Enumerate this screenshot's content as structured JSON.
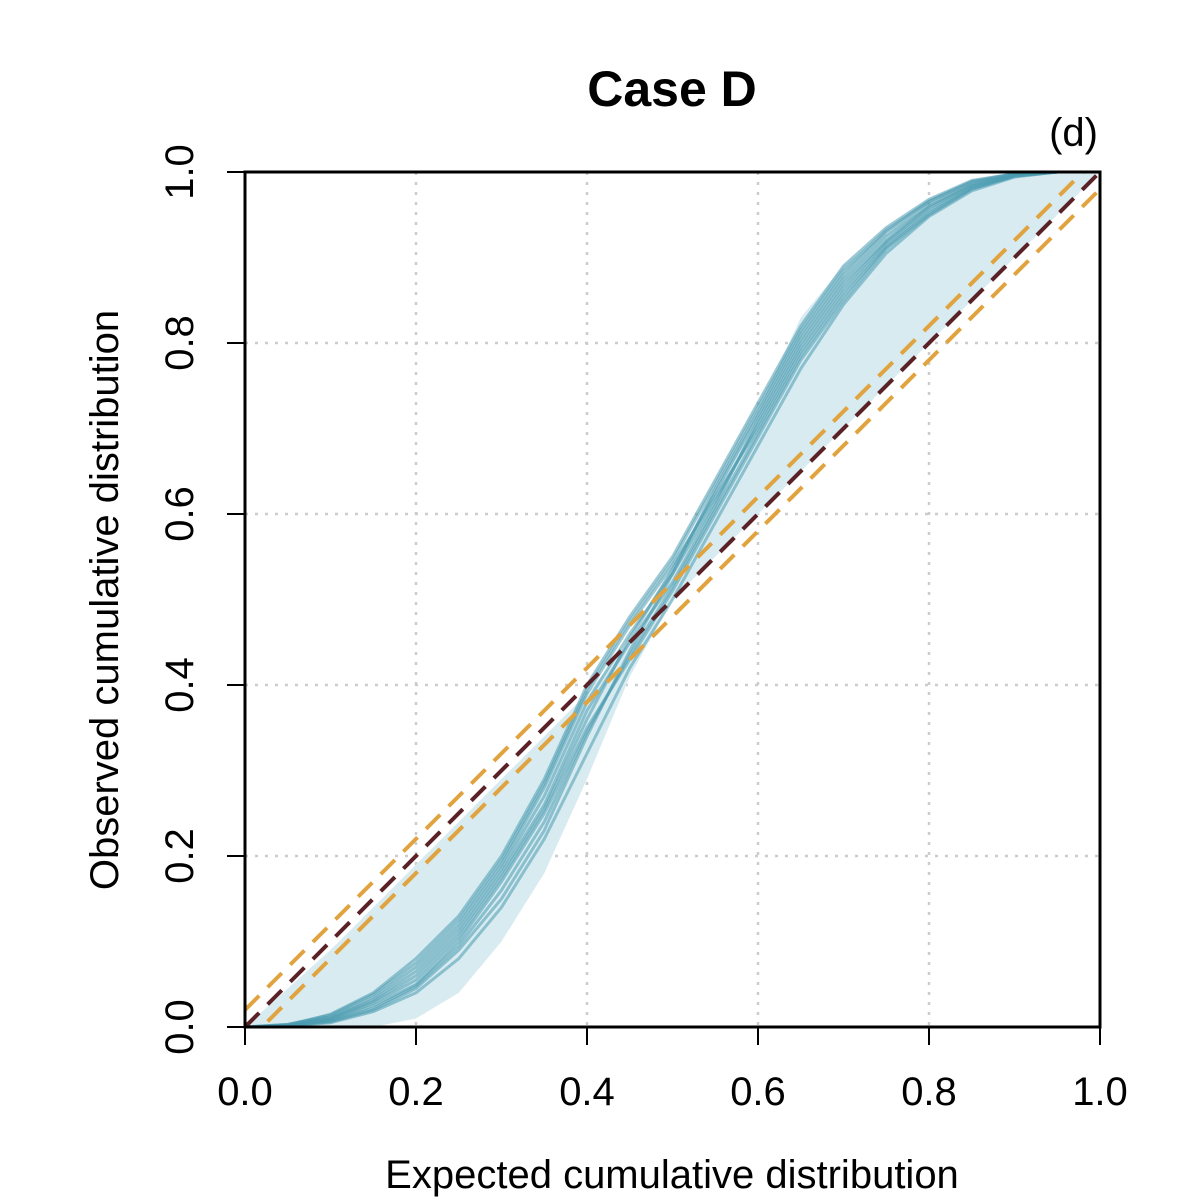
{
  "chart_data": {
    "type": "line",
    "title": "Case D",
    "panel_label": "(d)",
    "xlabel": "Expected cumulative distribution",
    "ylabel": "Observed cumulative distribution",
    "xlim": [
      0,
      1
    ],
    "ylim": [
      0,
      1
    ],
    "xticks": [
      "0.0",
      "0.2",
      "0.4",
      "0.6",
      "0.8",
      "1.0"
    ],
    "yticks": [
      "0.0",
      "0.2",
      "0.4",
      "0.6",
      "0.8",
      "1.0"
    ],
    "grid": true,
    "colors": {
      "replicate": "#4a9ab0",
      "envelope": "#d8ebf0",
      "reference": "#5a2226",
      "bounds": "#e0a33e",
      "grid": "#cccccc"
    },
    "reference_line": {
      "x": [
        0,
        1
      ],
      "y": [
        0,
        1
      ]
    },
    "bound_lines": [
      {
        "x": [
          0,
          1
        ],
        "y": [
          0.02,
          1.02
        ]
      },
      {
        "x": [
          0,
          1
        ],
        "y": [
          -0.02,
          0.98
        ]
      }
    ],
    "x": [
      0,
      0.05,
      0.1,
      0.15,
      0.2,
      0.25,
      0.3,
      0.35,
      0.4,
      0.45,
      0.5,
      0.55,
      0.6,
      0.65,
      0.7,
      0.75,
      0.8,
      0.85,
      0.9,
      0.95,
      1.0
    ],
    "envelope": {
      "upper": [
        0,
        0.045,
        0.09,
        0.14,
        0.19,
        0.24,
        0.29,
        0.34,
        0.39,
        0.45,
        0.54,
        0.63,
        0.72,
        0.83,
        0.89,
        0.93,
        0.96,
        0.985,
        0.997,
        1.0,
        1.0
      ],
      "lower": [
        0,
        0.0,
        0.0,
        0.0,
        0.01,
        0.04,
        0.1,
        0.18,
        0.29,
        0.41,
        0.5,
        0.55,
        0.6,
        0.65,
        0.7,
        0.75,
        0.8,
        0.85,
        0.9,
        0.95,
        1.0
      ]
    },
    "series": [
      {
        "values": [
          0,
          0.002,
          0.01,
          0.03,
          0.06,
          0.11,
          0.18,
          0.26,
          0.37,
          0.45,
          0.52,
          0.61,
          0.71,
          0.8,
          0.87,
          0.92,
          0.96,
          0.985,
          0.997,
          1.0,
          1.0
        ]
      },
      {
        "values": [
          0,
          0.001,
          0.006,
          0.02,
          0.045,
          0.09,
          0.15,
          0.23,
          0.34,
          0.44,
          0.53,
          0.63,
          0.72,
          0.81,
          0.88,
          0.93,
          0.965,
          0.988,
          0.998,
          1.0,
          1.0
        ]
      },
      {
        "values": [
          0,
          0.003,
          0.012,
          0.035,
          0.07,
          0.12,
          0.19,
          0.28,
          0.39,
          0.47,
          0.54,
          0.62,
          0.7,
          0.79,
          0.86,
          0.915,
          0.955,
          0.982,
          0.996,
          1.0,
          1.0
        ]
      },
      {
        "values": [
          0,
          0.001,
          0.008,
          0.025,
          0.05,
          0.1,
          0.17,
          0.25,
          0.35,
          0.43,
          0.51,
          0.6,
          0.69,
          0.78,
          0.85,
          0.91,
          0.95,
          0.98,
          0.995,
          1.0,
          1.0
        ]
      },
      {
        "values": [
          0,
          0.002,
          0.015,
          0.04,
          0.08,
          0.13,
          0.2,
          0.29,
          0.4,
          0.48,
          0.55,
          0.64,
          0.73,
          0.82,
          0.89,
          0.935,
          0.968,
          0.99,
          0.998,
          1.0,
          1.0
        ]
      },
      {
        "values": [
          0,
          0.001,
          0.005,
          0.018,
          0.04,
          0.08,
          0.14,
          0.22,
          0.32,
          0.42,
          0.5,
          0.59,
          0.68,
          0.77,
          0.845,
          0.905,
          0.948,
          0.978,
          0.994,
          1.0,
          1.0
        ]
      },
      {
        "values": [
          0,
          0.002,
          0.011,
          0.032,
          0.065,
          0.115,
          0.185,
          0.27,
          0.38,
          0.46,
          0.53,
          0.615,
          0.705,
          0.795,
          0.865,
          0.918,
          0.958,
          0.984,
          0.996,
          1.0,
          1.0
        ]
      },
      {
        "values": [
          0,
          0.001,
          0.009,
          0.028,
          0.055,
          0.105,
          0.175,
          0.255,
          0.36,
          0.455,
          0.535,
          0.625,
          0.715,
          0.805,
          0.875,
          0.925,
          0.962,
          0.986,
          0.997,
          1.0,
          1.0
        ]
      },
      {
        "values": [
          0,
          0.003,
          0.014,
          0.038,
          0.075,
          0.125,
          0.195,
          0.285,
          0.395,
          0.475,
          0.545,
          0.635,
          0.725,
          0.815,
          0.885,
          0.932,
          0.966,
          0.989,
          0.998,
          1.0,
          1.0
        ]
      },
      {
        "values": [
          0,
          0.001,
          0.007,
          0.022,
          0.048,
          0.095,
          0.16,
          0.24,
          0.345,
          0.435,
          0.515,
          0.605,
          0.695,
          0.785,
          0.855,
          0.912,
          0.952,
          0.981,
          0.995,
          1.0,
          1.0
        ]
      }
    ]
  }
}
